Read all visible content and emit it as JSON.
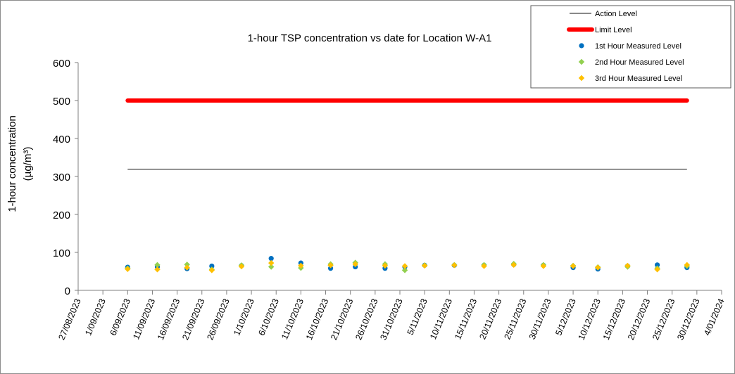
{
  "chart_data": {
    "type": "scatter",
    "title": "1-hour TSP concentration vs date for Location W-A1",
    "ylabel_line1": "1-hour concentration",
    "ylabel_line2": "(µg/m³)",
    "ylim": [
      0,
      600
    ],
    "yticks": [
      0,
      100,
      200,
      300,
      400,
      500,
      600
    ],
    "xlim": [
      "27/08/2023",
      "4/01/2024"
    ],
    "xticks": [
      "27/08/2023",
      "1/09/2023",
      "6/09/2023",
      "11/09/2023",
      "16/09/2023",
      "21/09/2023",
      "26/09/2023",
      "1/10/2023",
      "6/10/2023",
      "11/10/2023",
      "16/10/2023",
      "21/10/2023",
      "26/10/2023",
      "31/10/2023",
      "5/11/2023",
      "10/11/2023",
      "15/11/2023",
      "20/11/2023",
      "25/11/2023",
      "30/11/2023",
      "5/12/2023",
      "10/12/2023",
      "15/12/2023",
      "20/12/2023",
      "25/12/2023",
      "30/12/2023",
      "4/01/2024"
    ],
    "grid": false,
    "legend_position": "top-right",
    "reference_lines": [
      {
        "name": "Action Level",
        "value": 319,
        "x_start": "6/09/2023",
        "x_end": "28/12/2023",
        "color": "#404040"
      },
      {
        "name": "Limit Level",
        "value": 500,
        "x_start": "6/09/2023",
        "x_end": "28/12/2023",
        "color": "#ff0000"
      }
    ],
    "series": [
      {
        "name": "1st Hour Measured Level",
        "color": "#0070c0",
        "marker": "circle",
        "x": [
          "6/09/2023",
          "12/09/2023",
          "18/09/2023",
          "23/09/2023",
          "29/09/2023",
          "5/10/2023",
          "11/10/2023",
          "17/10/2023",
          "22/10/2023",
          "28/10/2023",
          "1/11/2023",
          "5/11/2023",
          "11/11/2023",
          "17/11/2023",
          "23/11/2023",
          "29/11/2023",
          "5/12/2023",
          "10/12/2023",
          "16/12/2023",
          "22/12/2023",
          "28/12/2023"
        ],
        "y": [
          61,
          62,
          57,
          64,
          65,
          84,
          72,
          58,
          62,
          58,
          62,
          66,
          66,
          66,
          68,
          66,
          60,
          56,
          64,
          67,
          60
        ]
      },
      {
        "name": "2nd Hour Measured Level",
        "color": "#92d050",
        "marker": "diamond",
        "x": [
          "6/09/2023",
          "12/09/2023",
          "18/09/2023",
          "23/09/2023",
          "29/09/2023",
          "5/10/2023",
          "11/10/2023",
          "17/10/2023",
          "22/10/2023",
          "28/10/2023",
          "1/11/2023",
          "5/11/2023",
          "11/11/2023",
          "17/11/2023",
          "23/11/2023",
          "29/11/2023",
          "5/12/2023",
          "10/12/2023",
          "16/12/2023",
          "22/12/2023",
          "28/12/2023"
        ],
        "y": [
          58,
          67,
          68,
          55,
          66,
          62,
          59,
          69,
          73,
          69,
          53,
          66,
          67,
          67,
          70,
          67,
          65,
          61,
          62,
          58,
          64
        ]
      },
      {
        "name": "3rd Hour Measured Level",
        "color": "#ffc000",
        "marker": "diamond",
        "x": [
          "6/09/2023",
          "12/09/2023",
          "18/09/2023",
          "23/09/2023",
          "29/09/2023",
          "5/10/2023",
          "11/10/2023",
          "17/10/2023",
          "22/10/2023",
          "28/10/2023",
          "1/11/2023",
          "5/11/2023",
          "11/11/2023",
          "17/11/2023",
          "23/11/2023",
          "29/11/2023",
          "5/12/2023",
          "10/12/2023",
          "16/12/2023",
          "22/12/2023",
          "28/12/2023"
        ],
        "y": [
          56,
          55,
          60,
          53,
          63,
          72,
          65,
          66,
          69,
          65,
          64,
          65,
          66,
          64,
          67,
          64,
          64,
          60,
          65,
          55,
          67
        ]
      }
    ]
  }
}
